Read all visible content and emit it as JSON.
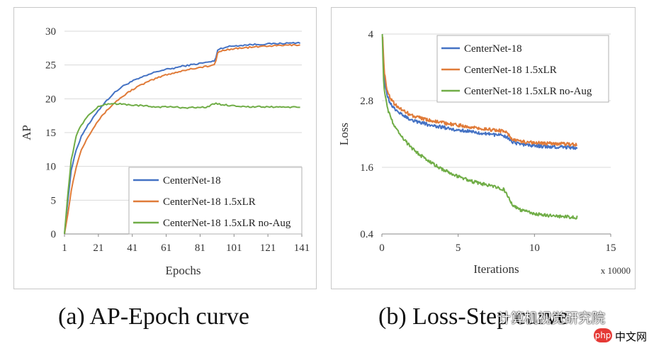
{
  "chart_data": [
    {
      "type": "line",
      "caption": "(a) AP-Epoch curve",
      "xlabel": "Epochs",
      "ylabel": "AP",
      "xlim": [
        1,
        141
      ],
      "ylim": [
        0,
        30
      ],
      "xticks": [
        "1",
        "21",
        "41",
        "61",
        "81",
        "101",
        "121",
        "141"
      ],
      "yticks": [
        "0",
        "5",
        "10",
        "15",
        "20",
        "25",
        "30"
      ],
      "legend": "bottom-right",
      "series": [
        {
          "name": "CenterNet-18",
          "color": "#4472c4",
          "x": [
            1,
            3,
            5,
            8,
            11,
            14,
            17,
            20,
            25,
            30,
            35,
            40,
            45,
            50,
            55,
            60,
            65,
            70,
            75,
            80,
            85,
            88,
            90,
            91,
            95,
            100,
            110,
            120,
            130,
            140
          ],
          "y": [
            0,
            5,
            9.5,
            12.5,
            14.5,
            15.8,
            16.8,
            18,
            19.5,
            20.8,
            21.8,
            22.5,
            23,
            23.5,
            24,
            24.3,
            24.5,
            24.8,
            25,
            25.2,
            25.4,
            25.5,
            25.6,
            27.2,
            27.6,
            27.8,
            28,
            28.1,
            28.2,
            28.3
          ]
        },
        {
          "name": "CenterNet-18 1.5xLR",
          "color": "#e07b39",
          "x": [
            1,
            3,
            5,
            8,
            11,
            14,
            17,
            20,
            25,
            30,
            35,
            40,
            45,
            50,
            55,
            60,
            65,
            70,
            75,
            80,
            85,
            88,
            90,
            91,
            95,
            100,
            110,
            120,
            130,
            140
          ],
          "y": [
            0,
            3,
            6.5,
            10,
            12.5,
            14,
            15.3,
            16.5,
            18,
            19.3,
            20.3,
            21.2,
            21.9,
            22.5,
            23,
            23.5,
            23.8,
            24.1,
            24.4,
            24.6,
            24.8,
            24.9,
            25,
            26.8,
            27.2,
            27.4,
            27.6,
            27.8,
            27.9,
            28
          ]
        },
        {
          "name": "CenterNet-18 1.5xLR no-Aug",
          "color": "#70ad47",
          "x": [
            1,
            3,
            5,
            8,
            10,
            12,
            15,
            18,
            21,
            25,
            30,
            35,
            40,
            45,
            50,
            55,
            60,
            65,
            70,
            75,
            80,
            85,
            90,
            95,
            100,
            110,
            120,
            130,
            140
          ],
          "y": [
            0,
            6,
            11,
            14.5,
            15.8,
            16.5,
            17.5,
            18.2,
            18.8,
            19.2,
            19.3,
            19.2,
            19.1,
            19,
            18.9,
            18.8,
            18.8,
            18.8,
            18.7,
            18.7,
            18.7,
            18.8,
            19.3,
            19.1,
            19,
            18.8,
            18.8,
            18.8,
            18.7
          ]
        }
      ]
    },
    {
      "type": "line",
      "caption": "(b) Loss-Step curve",
      "xlabel": "Iterations",
      "ylabel": "Loss",
      "x_multiplier": "x 10000",
      "xlim": [
        0,
        15
      ],
      "ylim": [
        0.4,
        4
      ],
      "xticks": [
        "0",
        "5",
        "10",
        "15"
      ],
      "yticks": [
        "0.4",
        "1.6",
        "2.8",
        "4"
      ],
      "legend": "top-right",
      "series": [
        {
          "name": "CenterNet-18",
          "color": "#4472c4",
          "x": [
            0.05,
            0.15,
            0.3,
            0.5,
            0.8,
            1.2,
            1.6,
            2,
            3,
            4,
            5,
            6,
            7,
            8,
            8.3,
            8.6,
            9,
            10,
            11,
            12,
            12.8
          ],
          "y": [
            3.9,
            3.2,
            2.95,
            2.78,
            2.66,
            2.58,
            2.5,
            2.45,
            2.37,
            2.32,
            2.27,
            2.24,
            2.2,
            2.17,
            2.12,
            2.05,
            2.02,
            1.99,
            1.97,
            1.96,
            1.95
          ]
        },
        {
          "name": "CenterNet-18 1.5xLR",
          "color": "#e07b39",
          "x": [
            0.05,
            0.15,
            0.3,
            0.5,
            0.8,
            1.2,
            1.6,
            2,
            3,
            4,
            5,
            6,
            7,
            8,
            8.3,
            8.6,
            9,
            10,
            11,
            12,
            12.8
          ],
          "y": [
            3.95,
            3.35,
            3.05,
            2.87,
            2.75,
            2.66,
            2.59,
            2.53,
            2.45,
            2.4,
            2.36,
            2.32,
            2.28,
            2.25,
            2.19,
            2.1,
            2.07,
            2.04,
            2.03,
            2.02,
            2.01
          ]
        },
        {
          "name": "CenterNet-18 1.5xLR no-Aug",
          "color": "#70ad47",
          "x": [
            0.03,
            0.1,
            0.2,
            0.4,
            0.7,
            1,
            1.5,
            2,
            3,
            4,
            5,
            6,
            7,
            7.5,
            8,
            8.3,
            8.6,
            9,
            10,
            11,
            12,
            12.8
          ],
          "y": [
            4,
            3.2,
            2.9,
            2.62,
            2.42,
            2.27,
            2.08,
            1.93,
            1.72,
            1.56,
            1.43,
            1.34,
            1.28,
            1.25,
            1.2,
            1.05,
            0.92,
            0.84,
            0.76,
            0.73,
            0.71,
            0.7
          ]
        }
      ]
    }
  ],
  "watermark": {
    "text": "计算机视觉研究院",
    "site": "中文网",
    "site_badge": "php"
  }
}
